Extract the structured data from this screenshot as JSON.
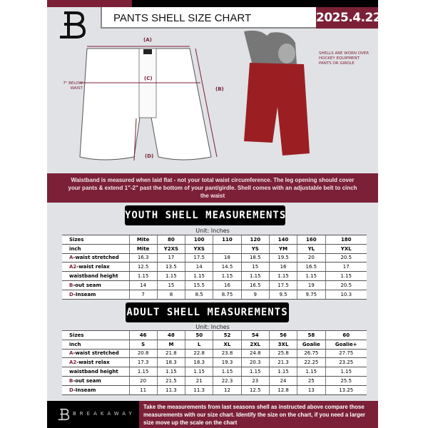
{
  "header": {
    "title": "PANTS SHELL SIZE CHART",
    "date": "2025.4.22"
  },
  "diagram": {
    "labels": {
      "a": "(A)",
      "b": "(B)",
      "c": "(C)",
      "d": "(D)"
    },
    "below_waist": "7\" BELOW WAIST",
    "note": "SHELLS ARE WORN OVER HOCKEY EQUIPMENT PANTS OR GIRDLE"
  },
  "banner": "Waistband is measured when laid flat - not your total waist circumference. The leg opening should cover your pants & extend 1\"-2\" past the bottom of your pant/girdle. Shell comes with an adjustable belt to cinch the waist",
  "youth": {
    "heading": "YOUTH SHELL MEASUREMENTS",
    "unit": "Unit: Inches",
    "rows": [
      {
        "prefix": "",
        "label": "Sizes",
        "cells": [
          "Mite",
          "80",
          "100",
          "110",
          "120",
          "140",
          "160",
          "180"
        ]
      },
      {
        "prefix": "",
        "label": "inch",
        "cells": [
          "Mite",
          "Y2XS",
          "YXS",
          "",
          "YS",
          "YM",
          "YL",
          "YXL"
        ]
      },
      {
        "prefix": "A",
        "label": "-waist stretched",
        "cells": [
          "16.3",
          "17",
          "17.5",
          "18",
          "18.5",
          "19.5",
          "20",
          "20.5"
        ]
      },
      {
        "prefix": "A2",
        "label": "-waist relax",
        "cells": [
          "12.5",
          "13.5",
          "14",
          "14.5",
          "15",
          "16",
          "16.5",
          "17"
        ]
      },
      {
        "prefix": "",
        "label": "waistband height",
        "cells": [
          "1.15",
          "1.15",
          "1.15",
          "1.15",
          "1.15",
          "1.15",
          "1.15",
          "1.15"
        ]
      },
      {
        "prefix": "B",
        "label": "-out seam",
        "cells": [
          "14",
          "15",
          "15.5",
          "16",
          "16.5",
          "17.5",
          "19",
          "20.5"
        ]
      },
      {
        "prefix": "D",
        "label": "-Inseam",
        "cells": [
          "7",
          "8",
          "8.5",
          "8.75",
          "9",
          "9.5",
          "9.75",
          "10.3"
        ]
      }
    ]
  },
  "adult": {
    "heading": "ADULT SHELL MEASUREMENTS",
    "unit": "Unit: Inches",
    "rows": [
      {
        "prefix": "",
        "label": "Sizes",
        "cells": [
          "46",
          "48",
          "50",
          "52",
          "54",
          "56",
          "58",
          "60"
        ]
      },
      {
        "prefix": "",
        "label": "inch",
        "cells": [
          "S",
          "M",
          "L",
          "XL",
          "2XL",
          "3XL",
          "Goalie",
          "Goalie+"
        ]
      },
      {
        "prefix": "A",
        "label": "-waist stretched",
        "cells": [
          "20.8",
          "21.8",
          "22.8",
          "23.8",
          "24.8",
          "25.8",
          "26.75",
          "27.75"
        ]
      },
      {
        "prefix": "A2",
        "label": "-waist relax",
        "cells": [
          "17.3",
          "18.3",
          "18.3",
          "19.3",
          "20.3",
          "21.3",
          "22.25",
          "23.25"
        ]
      },
      {
        "prefix": "",
        "label": "waistband height",
        "cells": [
          "1.15",
          "1.15",
          "1.15",
          "1.15",
          "1.15",
          "1.15",
          "1.15",
          "1.15"
        ]
      },
      {
        "prefix": "B",
        "label": "-out seam",
        "cells": [
          "20",
          "21.5",
          "21",
          "22.3",
          "23",
          "24",
          "25",
          "25.5"
        ]
      },
      {
        "prefix": "D",
        "label": "-Inseam",
        "cells": [
          "11",
          "11.3",
          "11.3",
          "12",
          "12.5",
          "12.8",
          "13",
          "13.25"
        ]
      }
    ]
  },
  "footer": {
    "brand": "BREAKAWAY",
    "text": "Take the measurements from last seasons shell as instructed above compare those measurements  with our size chart. Identify the size on the chart, if you need a larger size move up the scale on the chart"
  },
  "colors": {
    "accent": "#7b2037",
    "dark": "#000000",
    "background": "#e1e2e5"
  }
}
